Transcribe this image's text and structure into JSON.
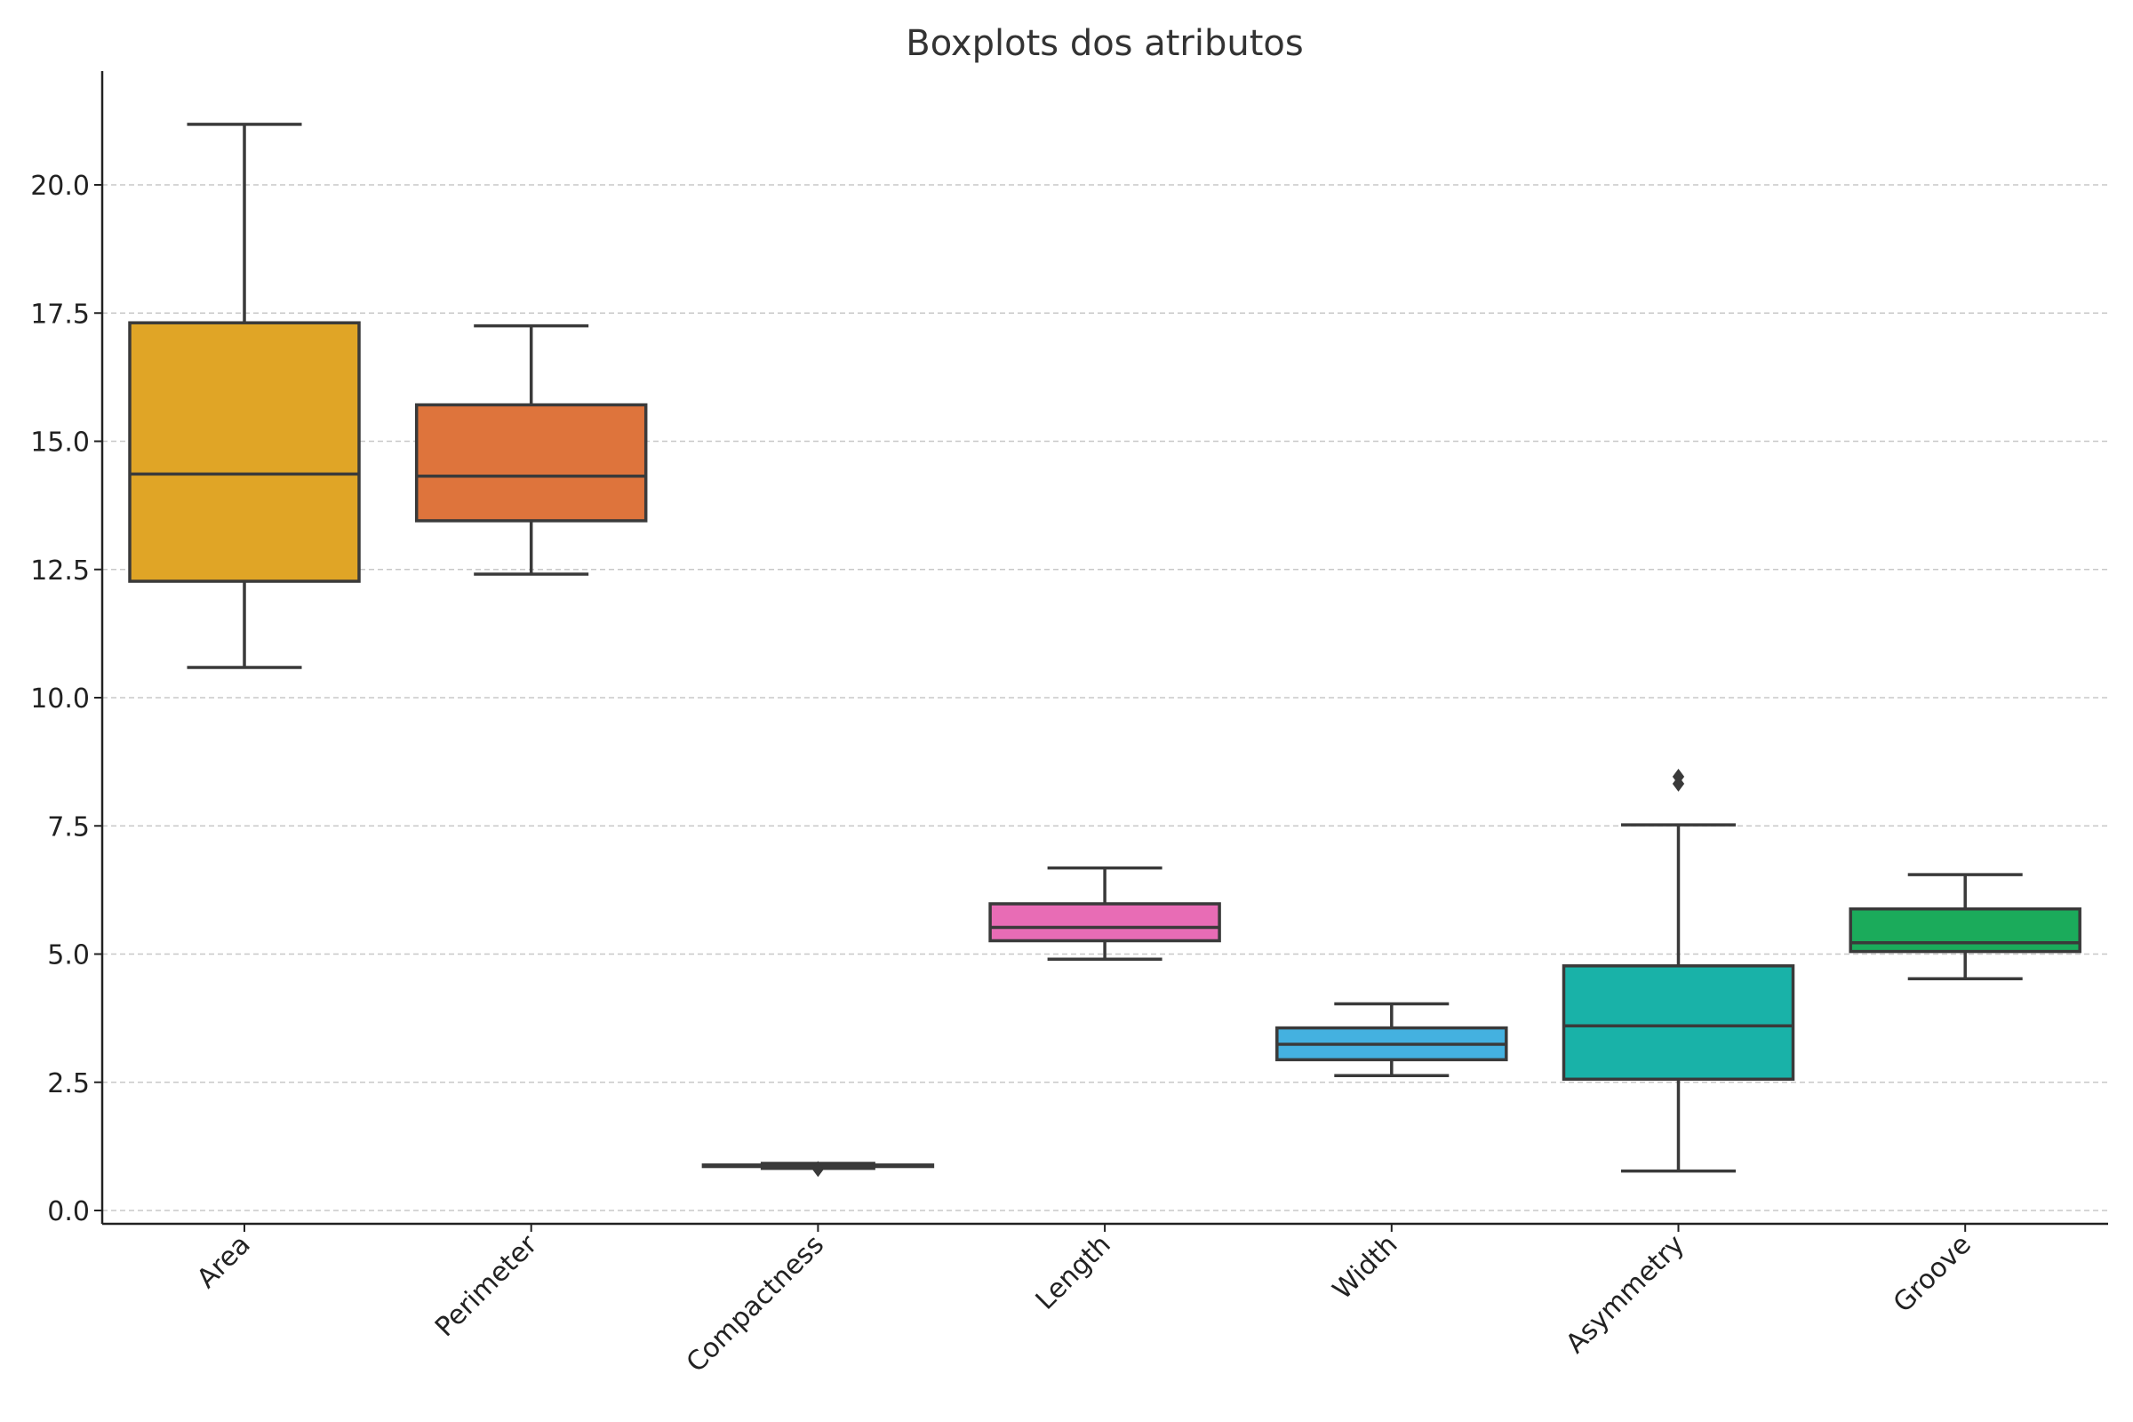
{
  "chart_data": {
    "type": "boxplot",
    "title": "Boxplots dos atributos",
    "xlabel": "",
    "ylabel": "",
    "ylim": [
      -0.25,
      22.3
    ],
    "yticks": [
      0.0,
      2.5,
      5.0,
      7.5,
      10.0,
      12.5,
      15.0,
      17.5,
      20.0
    ],
    "ytick_labels": [
      "0.0",
      "2.5",
      "5.0",
      "7.5",
      "10.0",
      "12.5",
      "15.0",
      "17.5",
      "20.0"
    ],
    "grid": "y-dashed",
    "categories": [
      "Area",
      "Perimeter",
      "Compactness",
      "Length",
      "Width",
      "Asymmetry",
      "Groove"
    ],
    "boxes": [
      {
        "name": "Area",
        "whislo": 10.59,
        "q1": 12.27,
        "med": 14.36,
        "q3": 17.31,
        "whishi": 21.18,
        "fliers": [],
        "color": "#e0a526"
      },
      {
        "name": "Perimeter",
        "whislo": 12.41,
        "q1": 13.45,
        "med": 14.32,
        "q3": 15.71,
        "whishi": 17.25,
        "fliers": [],
        "color": "#de743c"
      },
      {
        "name": "Compactness",
        "whislo": 0.82,
        "q1": 0.857,
        "med": 0.873,
        "q3": 0.887,
        "whishi": 0.918,
        "fliers": [
          0.81,
          0.808
        ],
        "color": "#a3a3a3"
      },
      {
        "name": "Length",
        "whislo": 4.9,
        "q1": 5.26,
        "med": 5.52,
        "q3": 5.98,
        "whishi": 6.68,
        "fliers": [],
        "color": "#e86cb5"
      },
      {
        "name": "Width",
        "whislo": 2.63,
        "q1": 2.94,
        "med": 3.24,
        "q3": 3.56,
        "whishi": 4.03,
        "fliers": [],
        "color": "#44b1e0"
      },
      {
        "name": "Asymmetry",
        "whislo": 0.77,
        "q1": 2.56,
        "med": 3.6,
        "q3": 4.77,
        "whishi": 7.52,
        "fliers": [
          8.32,
          8.46
        ],
        "color": "#19b2a8"
      },
      {
        "name": "Groove",
        "whislo": 4.52,
        "q1": 5.05,
        "med": 5.22,
        "q3": 5.88,
        "whishi": 6.55,
        "fliers": [],
        "color": "#1bab5b"
      }
    ]
  }
}
